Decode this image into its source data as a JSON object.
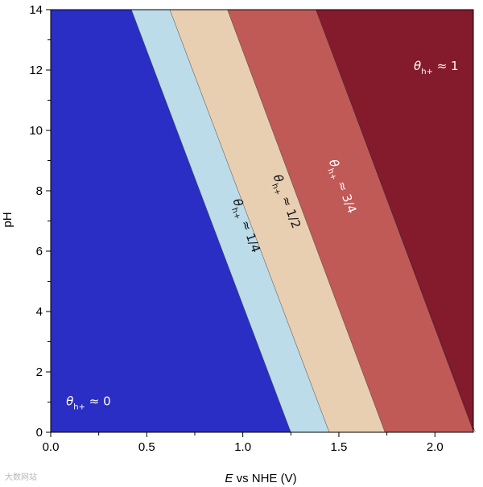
{
  "chart_data": {
    "type": "area",
    "xlabel_italic": "E",
    "xlabel_rest": " vs NHE (V)",
    "ylabel": "pH",
    "xlim": [
      0.0,
      2.2
    ],
    "ylim": [
      0,
      14
    ],
    "x_ticks": [
      0.0,
      0.5,
      1.0,
      1.5,
      2.0
    ],
    "x_tick_labels": [
      "0.0",
      "0.5",
      "1.0",
      "1.5",
      "2.0"
    ],
    "y_ticks": [
      0,
      2,
      4,
      6,
      8,
      10,
      12,
      14
    ],
    "y_tick_labels": [
      "0",
      "2",
      "4",
      "6",
      "8",
      "10",
      "12",
      "14"
    ],
    "grid": false,
    "boundaries": [
      {
        "E_at_pH0": 1.25,
        "E_at_pH14": 0.42
      },
      {
        "E_at_pH0": 1.45,
        "E_at_pH14": 0.62
      },
      {
        "E_at_pH0": 1.74,
        "E_at_pH14": 0.92
      },
      {
        "E_at_pH0": 2.21,
        "E_at_pH14": 1.38
      }
    ],
    "regions": [
      {
        "label_sym": "θ",
        "label_sub": "h+",
        "label_val": " ≈ 0",
        "color": "#2a2ec4",
        "text_color": "#ffffff",
        "label_E": 0.08,
        "label_pH": 0.9,
        "label_rotate": false
      },
      {
        "label_sym": "θ",
        "label_sub": "h+",
        "label_val": " ≈ 1/4",
        "color": "#bcdcea",
        "text_color": "#111111",
        "label_E": 1.0,
        "label_pH": 6.8,
        "label_rotate": true
      },
      {
        "label_sym": "θ",
        "label_sub": "h+",
        "label_val": " ≈ 1/2",
        "color": "#e9cfb2",
        "text_color": "#111111",
        "label_E": 1.21,
        "label_pH": 7.6,
        "label_rotate": true
      },
      {
        "label_sym": "θ",
        "label_sub": "h+",
        "label_val": " ≈ 3/4",
        "color": "#c05a57",
        "text_color": "#ffffff",
        "label_E": 1.5,
        "label_pH": 8.1,
        "label_rotate": true
      },
      {
        "label_sym": "θ",
        "label_sub": "h+",
        "label_val": " ≈ 1",
        "color": "#831b2c",
        "text_color": "#ffffff",
        "label_E": 1.89,
        "label_pH": 12.0,
        "label_rotate": false
      }
    ]
  },
  "watermark_text": "大数网站"
}
